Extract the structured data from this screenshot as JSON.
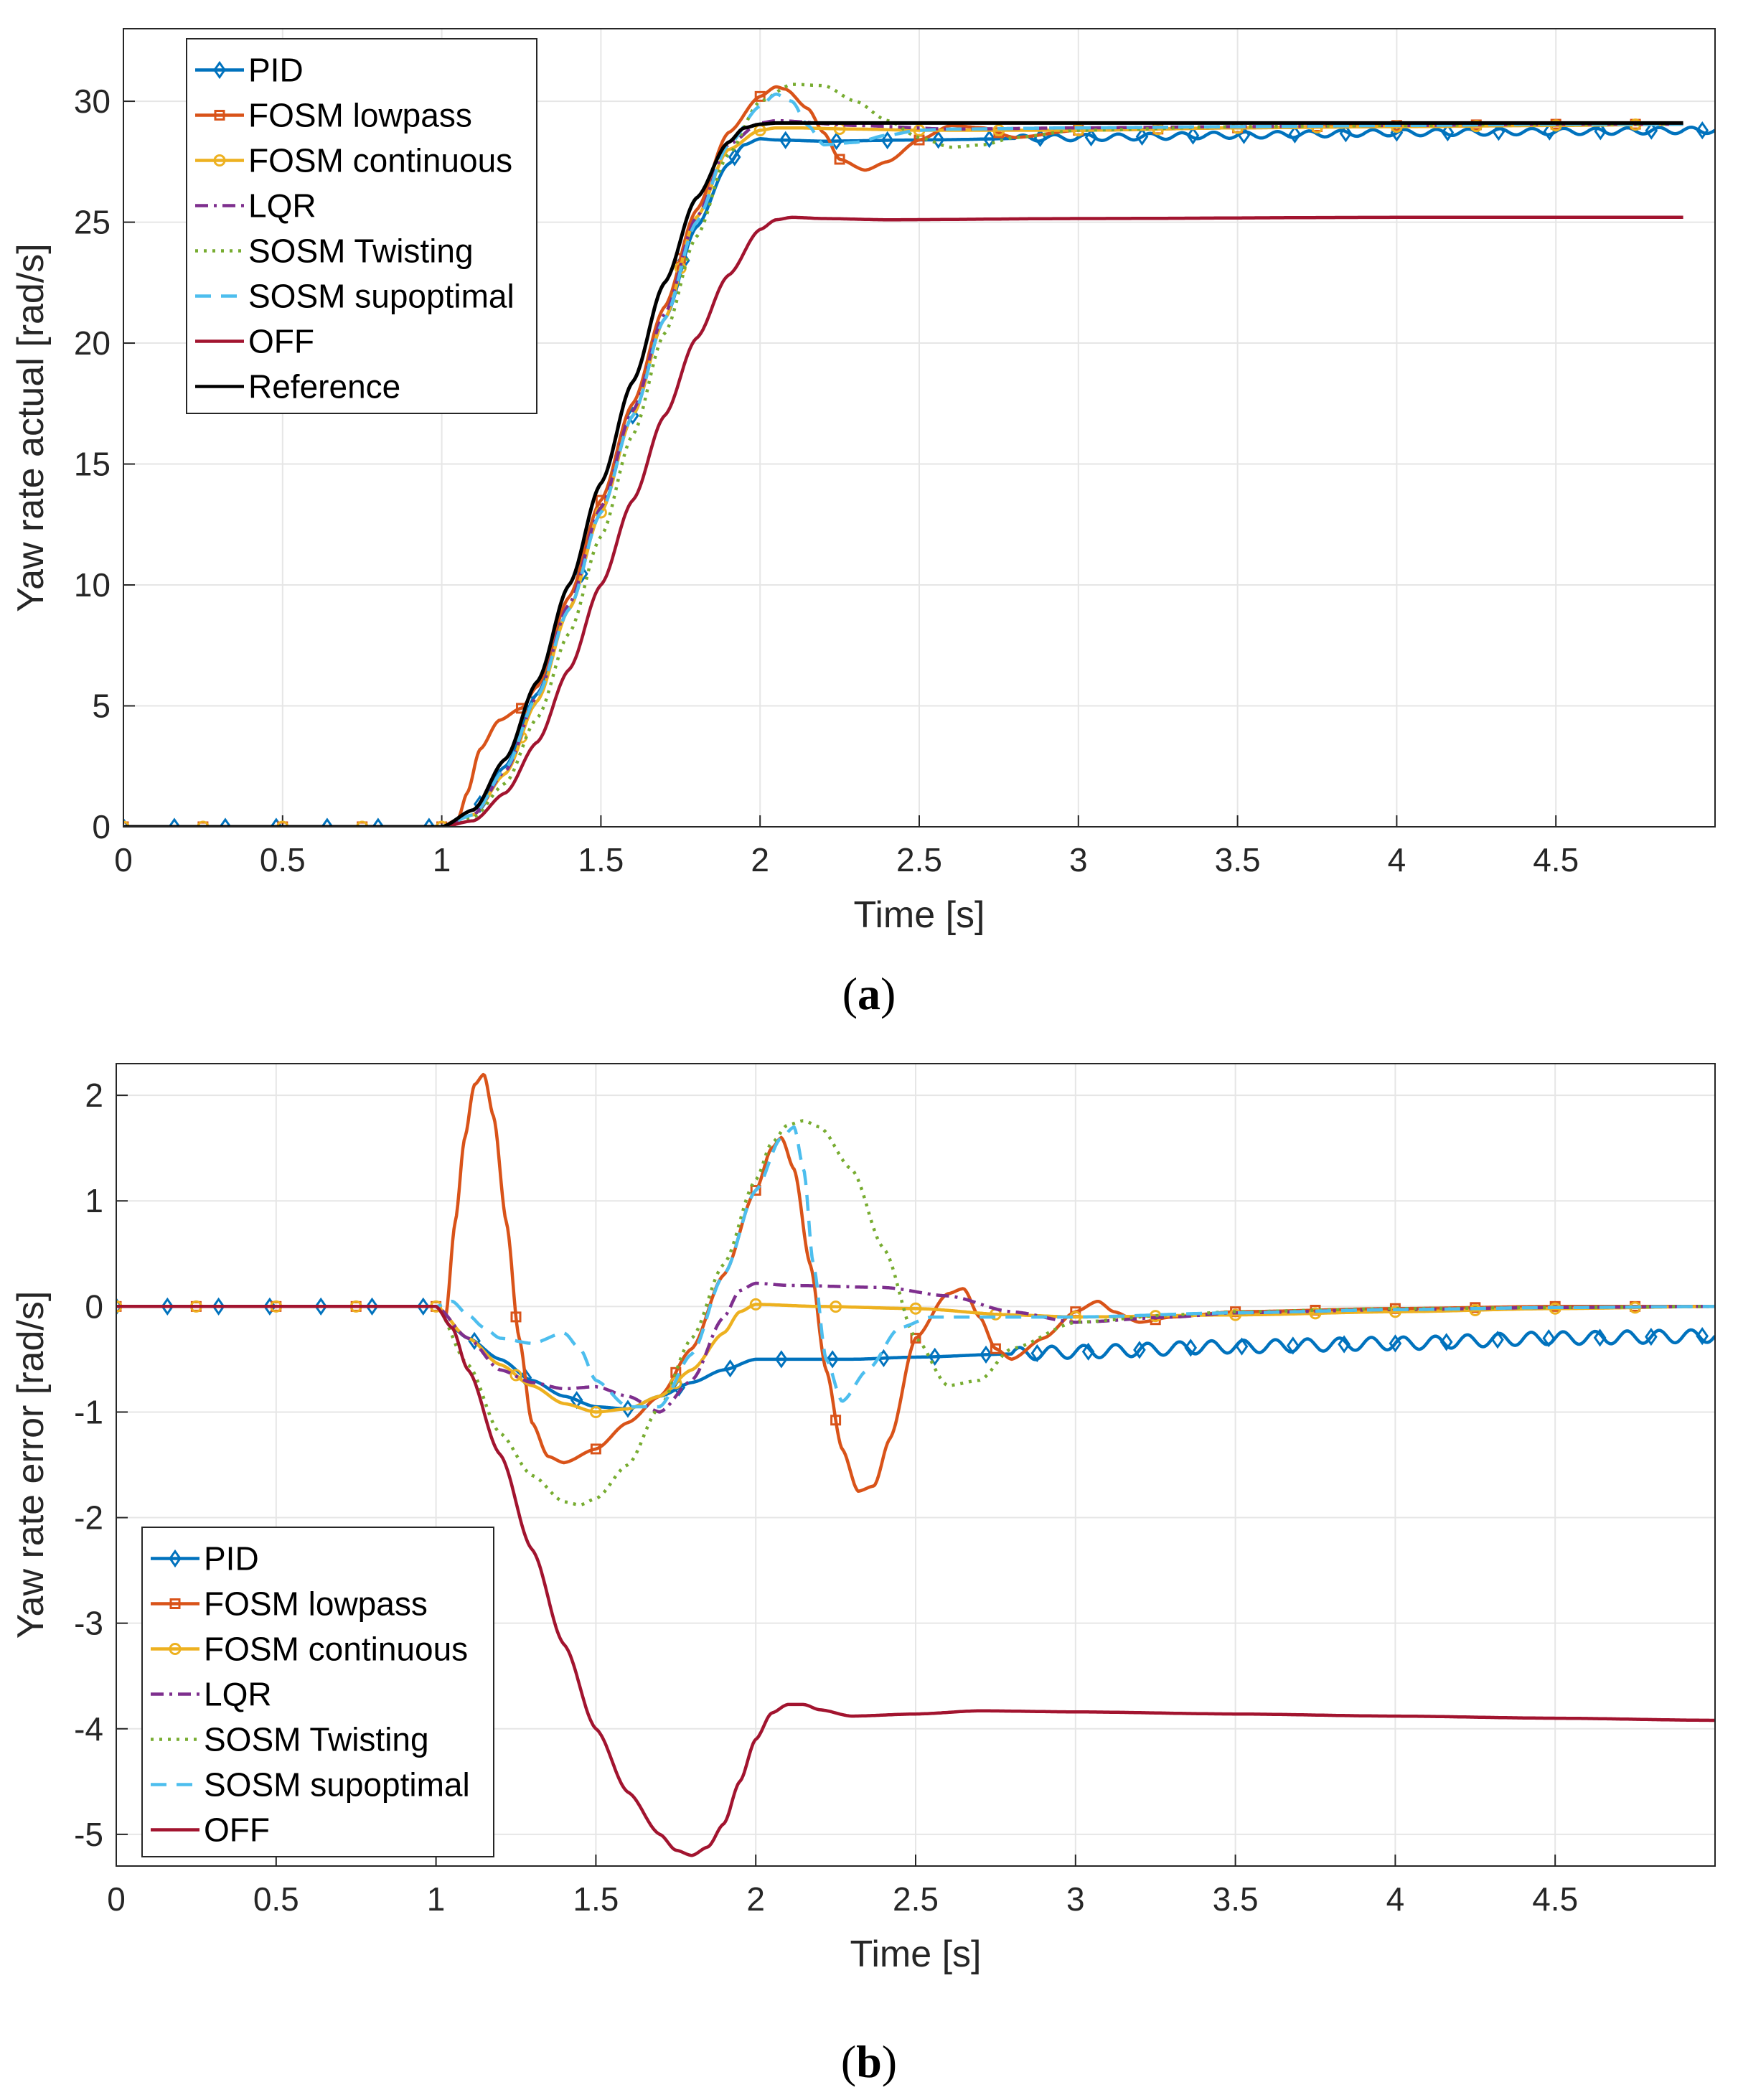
{
  "colors": {
    "pid": "#0072BD",
    "fosm_lowpass": "#D95319",
    "fosm_continuous": "#EDB120",
    "lqr": "#7E2F8E",
    "sosm_twisting": "#77AC30",
    "sosm_supoptimal": "#4DBEEE",
    "off": "#A2142F",
    "reference": "#000000",
    "grid": "#e6e6e6",
    "axis": "#262626"
  },
  "captions": {
    "a": "a",
    "b": "b"
  },
  "chart_data": [
    {
      "type": "line",
      "panel": "a",
      "title": "",
      "xlabel": "Time [s]",
      "ylabel": "Yaw rate actual [rad/s]",
      "xlim": [
        0,
        5
      ],
      "ylim": [
        0,
        33
      ],
      "xticks": [
        0,
        0.5,
        1,
        1.5,
        2,
        2.5,
        3,
        3.5,
        4,
        4.5
      ],
      "xtick_labels": [
        "0",
        "0.5",
        "1",
        "1.5",
        "2",
        "2.5",
        "3",
        "3.5",
        "4",
        "4.5"
      ],
      "yticks": [
        0,
        5,
        10,
        15,
        20,
        25,
        30
      ],
      "ytick_labels": [
        "0",
        "5",
        "10",
        "15",
        "20",
        "25",
        "30"
      ],
      "grid": true,
      "legend_position": "top-left",
      "series": [
        {
          "name": "PID",
          "key": "pid",
          "style": "solid",
          "marker": "diamond",
          "marker_every": 0.16,
          "x": [
            0,
            1,
            1.1,
            1.2,
            1.3,
            1.4,
            1.5,
            1.6,
            1.7,
            1.8,
            1.9,
            1.95,
            2.0,
            2.05,
            2.2,
            2.5,
            3.0,
            3.5,
            4.0,
            4.5,
            5.0
          ],
          "y": [
            0,
            0,
            0.7,
            2.5,
            5.5,
            9,
            13,
            17,
            21,
            24.8,
            27.4,
            28.2,
            28.45,
            28.4,
            28.35,
            28.4,
            28.5,
            28.6,
            28.7,
            28.75,
            28.8
          ],
          "ripple": {
            "from": 2.8,
            "amp": 0.13,
            "period": 0.1
          }
        },
        {
          "name": "FOSM lowpass",
          "key": "fosm_lowpass",
          "style": "solid",
          "marker": "square",
          "marker_every": 0.25,
          "x": [
            0,
            1,
            1.05,
            1.08,
            1.12,
            1.18,
            1.25,
            1.3,
            1.4,
            1.5,
            1.6,
            1.7,
            1.8,
            1.9,
            2.0,
            2.05,
            2.08,
            2.15,
            2.2,
            2.25,
            2.33,
            2.4,
            2.5,
            2.6,
            2.7,
            2.8,
            3.0,
            3.5,
            4.0,
            4.5,
            4.9
          ],
          "y": [
            0,
            0,
            0.3,
            1.4,
            3.2,
            4.4,
            4.9,
            5.8,
            9.5,
            13.5,
            17.5,
            21.5,
            25.5,
            28.7,
            30.2,
            30.6,
            30.5,
            29.7,
            28.7,
            27.6,
            27.15,
            27.5,
            28.4,
            29.0,
            28.9,
            28.5,
            28.8,
            28.9,
            29.0,
            29.05,
            29.05
          ]
        },
        {
          "name": "FOSM continuous",
          "key": "fosm_continuous",
          "style": "solid",
          "marker": "circle",
          "marker_every": 0.25,
          "x": [
            0,
            1,
            1.1,
            1.2,
            1.3,
            1.4,
            1.5,
            1.6,
            1.7,
            1.8,
            1.9,
            2.0,
            2.05,
            2.1,
            2.3,
            2.5,
            3.0,
            3.5,
            4.0,
            4.5,
            4.9
          ],
          "y": [
            0,
            0,
            0.5,
            2.2,
            5.2,
            9,
            13,
            17,
            21,
            25.2,
            28.0,
            28.8,
            28.9,
            28.9,
            28.85,
            28.8,
            28.8,
            28.9,
            28.95,
            29.0,
            29.05
          ]
        },
        {
          "name": "LQR",
          "key": "lqr",
          "style": "dashdot",
          "marker": "none",
          "x": [
            0,
            1,
            1.1,
            1.2,
            1.3,
            1.4,
            1.5,
            1.6,
            1.7,
            1.8,
            1.9,
            2.0,
            2.05,
            2.3,
            2.6,
            3.0,
            3.5,
            4.0,
            4.5,
            4.9
          ],
          "y": [
            0,
            0,
            0.5,
            2.3,
            5.4,
            9.2,
            13.2,
            17.2,
            21.2,
            25.2,
            28.2,
            29.1,
            29.2,
            29.0,
            28.85,
            28.9,
            28.95,
            29.0,
            29.05,
            29.05
          ]
        },
        {
          "name": "SOSM Twisting",
          "key": "sosm_twisting",
          "style": "dotted",
          "marker": "none",
          "x": [
            0,
            1,
            1.1,
            1.2,
            1.3,
            1.4,
            1.5,
            1.6,
            1.7,
            1.8,
            1.9,
            2.0,
            2.1,
            2.2,
            2.3,
            2.4,
            2.5,
            2.6,
            2.7,
            2.8,
            3.0,
            3.5,
            4.0,
            4.5,
            4.9
          ],
          "y": [
            0,
            0,
            0.4,
            1.8,
            4.5,
            8,
            12,
            16.2,
            20.4,
            24.4,
            27.8,
            30.0,
            30.7,
            30.65,
            30.0,
            29.2,
            28.5,
            28.1,
            28.2,
            28.5,
            28.8,
            28.95,
            29.0,
            29.05,
            29.05
          ]
        },
        {
          "name": "SOSM supoptimal",
          "key": "sosm_supoptimal",
          "style": "dashed",
          "marker": "none",
          "x": [
            0,
            1,
            1.1,
            1.2,
            1.3,
            1.4,
            1.5,
            1.6,
            1.7,
            1.8,
            1.9,
            2.0,
            2.05,
            2.1,
            2.15,
            2.2,
            2.3,
            2.4,
            2.5,
            2.6,
            3.0,
            3.5,
            4.0,
            4.5,
            4.9
          ],
          "y": [
            0,
            0,
            0.5,
            2.4,
            5.4,
            9,
            13,
            17,
            21,
            25,
            28.2,
            29.8,
            30.3,
            30.0,
            29.0,
            28.2,
            28.3,
            28.6,
            28.8,
            28.85,
            28.9,
            28.95,
            29.0,
            29.05,
            29.05
          ]
        },
        {
          "name": "OFF",
          "key": "off",
          "style": "solid",
          "marker": "none",
          "x": [
            0,
            1,
            1.1,
            1.2,
            1.3,
            1.4,
            1.5,
            1.6,
            1.7,
            1.8,
            1.9,
            2.0,
            2.05,
            2.1,
            2.2,
            2.4,
            3.0,
            4.0,
            4.9
          ],
          "y": [
            0,
            0,
            0.25,
            1.4,
            3.5,
            6.5,
            10,
            13.5,
            17,
            20.2,
            22.8,
            24.7,
            25.1,
            25.2,
            25.15,
            25.1,
            25.15,
            25.2,
            25.2
          ]
        },
        {
          "name": "Reference",
          "key": "reference",
          "style": "solid",
          "marker": "none",
          "x": [
            0,
            1,
            1.1,
            1.2,
            1.3,
            1.4,
            1.5,
            1.6,
            1.7,
            1.8,
            1.9,
            1.95,
            2.0,
            2.05,
            2.5,
            3.0,
            4.0,
            4.9
          ],
          "y": [
            0,
            0,
            0.7,
            2.8,
            6,
            10,
            14.2,
            18.4,
            22.5,
            26.0,
            28.3,
            28.9,
            29.05,
            29.1,
            29.1,
            29.1,
            29.1,
            29.1
          ]
        }
      ]
    },
    {
      "type": "line",
      "panel": "b",
      "title": "",
      "xlabel": "Time [s]",
      "ylabel": "Yaw rate error [rad/s]",
      "xlim": [
        0,
        5
      ],
      "ylim": [
        -5.3,
        2.3
      ],
      "xticks": [
        0,
        0.5,
        1,
        1.5,
        2,
        2.5,
        3,
        3.5,
        4,
        4.5
      ],
      "xtick_labels": [
        "0",
        "0.5",
        "1",
        "1.5",
        "2",
        "2.5",
        "3",
        "3.5",
        "4",
        "4.5"
      ],
      "yticks": [
        2,
        1,
        0,
        -1,
        -2,
        -3,
        -4,
        -5
      ],
      "ytick_labels": [
        "2",
        "1",
        "0",
        "-1",
        "-2",
        "-3",
        "-4",
        "-5"
      ],
      "grid": true,
      "legend_position": "bottom-left",
      "series": [
        {
          "name": "PID",
          "key": "pid",
          "style": "solid",
          "marker": "diamond",
          "marker_every": 0.16,
          "x": [
            0,
            1,
            1.05,
            1.1,
            1.2,
            1.3,
            1.4,
            1.5,
            1.6,
            1.7,
            1.8,
            1.9,
            2.0,
            2.1,
            2.3,
            2.5,
            2.8,
            3.0,
            3.5,
            4.0,
            4.5,
            5.0
          ],
          "y": [
            0,
            0,
            -0.2,
            -0.3,
            -0.5,
            -0.7,
            -0.85,
            -0.95,
            -0.97,
            -0.85,
            -0.72,
            -0.6,
            -0.5,
            -0.5,
            -0.5,
            -0.48,
            -0.45,
            -0.43,
            -0.38,
            -0.35,
            -0.3,
            -0.28
          ],
          "ripple": {
            "from": 2.8,
            "amp": 0.06,
            "period": 0.1
          }
        },
        {
          "name": "FOSM lowpass",
          "key": "fosm_lowpass",
          "style": "solid",
          "marker": "square",
          "marker_every": 0.25,
          "x": [
            0,
            1,
            1.03,
            1.06,
            1.09,
            1.12,
            1.15,
            1.18,
            1.22,
            1.26,
            1.3,
            1.35,
            1.4,
            1.5,
            1.6,
            1.7,
            1.8,
            1.9,
            2.0,
            2.05,
            2.08,
            2.12,
            2.17,
            2.22,
            2.27,
            2.32,
            2.37,
            2.42,
            2.5,
            2.6,
            2.65,
            2.7,
            2.75,
            2.8,
            2.9,
            3.0,
            3.07,
            3.12,
            3.2,
            3.3,
            3.5,
            4.0,
            4.5,
            5.0
          ],
          "y": [
            0,
            0,
            -0.1,
            0.8,
            1.6,
            2.1,
            2.2,
            1.8,
            0.8,
            -0.3,
            -1.1,
            -1.42,
            -1.48,
            -1.35,
            -1.1,
            -0.85,
            -0.4,
            0.3,
            1.1,
            1.5,
            1.6,
            1.3,
            0.4,
            -0.6,
            -1.35,
            -1.75,
            -1.7,
            -1.25,
            -0.3,
            0.12,
            0.17,
            -0.1,
            -0.4,
            -0.5,
            -0.3,
            -0.05,
            0.05,
            -0.05,
            -0.15,
            -0.1,
            -0.05,
            -0.02,
            0,
            0
          ]
        },
        {
          "name": "FOSM continuous",
          "key": "fosm_continuous",
          "style": "solid",
          "marker": "circle",
          "marker_every": 0.25,
          "x": [
            0,
            1,
            1.1,
            1.2,
            1.3,
            1.4,
            1.5,
            1.6,
            1.7,
            1.8,
            1.9,
            1.95,
            2.0,
            2.2,
            2.5,
            2.8,
            3.0,
            3.5,
            4.0,
            4.5,
            5.0
          ],
          "y": [
            0,
            0,
            -0.3,
            -0.55,
            -0.75,
            -0.92,
            -1.0,
            -0.97,
            -0.85,
            -0.6,
            -0.25,
            -0.05,
            0.02,
            0.0,
            -0.02,
            -0.08,
            -0.1,
            -0.08,
            -0.05,
            -0.02,
            0
          ]
        },
        {
          "name": "LQR",
          "key": "lqr",
          "style": "dashdot",
          "marker": "none",
          "x": [
            0,
            1,
            1.1,
            1.2,
            1.3,
            1.4,
            1.5,
            1.6,
            1.7,
            1.8,
            1.9,
            1.95,
            2.0,
            2.1,
            2.4,
            2.6,
            2.8,
            3.0,
            3.3,
            3.5,
            4.0,
            4.5,
            5.0
          ],
          "y": [
            0,
            0,
            -0.3,
            -0.6,
            -0.72,
            -0.78,
            -0.76,
            -0.85,
            -1.0,
            -0.7,
            -0.1,
            0.15,
            0.22,
            0.2,
            0.18,
            0.1,
            -0.05,
            -0.15,
            -0.1,
            -0.06,
            -0.03,
            -0.01,
            0
          ]
        },
        {
          "name": "SOSM Twisting",
          "key": "sosm_twisting",
          "style": "dotted",
          "marker": "none",
          "x": [
            0,
            1,
            1.1,
            1.2,
            1.3,
            1.4,
            1.45,
            1.5,
            1.6,
            1.7,
            1.8,
            1.9,
            2.0,
            2.05,
            2.1,
            2.15,
            2.2,
            2.3,
            2.4,
            2.5,
            2.6,
            2.7,
            2.8,
            3.0,
            3.3,
            3.5,
            4.0,
            4.5,
            5.0
          ],
          "y": [
            0,
            0,
            -0.55,
            -1.2,
            -1.6,
            -1.85,
            -1.88,
            -1.82,
            -1.5,
            -0.95,
            -0.3,
            0.4,
            1.2,
            1.55,
            1.72,
            1.76,
            1.7,
            1.3,
            0.55,
            -0.3,
            -0.75,
            -0.7,
            -0.4,
            -0.15,
            -0.08,
            -0.05,
            -0.02,
            -0.01,
            0
          ]
        },
        {
          "name": "SOSM supoptimal",
          "key": "sosm_supoptimal",
          "style": "dashed",
          "marker": "none",
          "x": [
            0,
            1,
            1.05,
            1.1,
            1.15,
            1.2,
            1.3,
            1.4,
            1.45,
            1.5,
            1.6,
            1.7,
            1.8,
            1.9,
            2.0,
            2.08,
            2.12,
            2.15,
            2.18,
            2.22,
            2.27,
            2.35,
            2.45,
            2.55,
            2.7,
            3.0,
            3.5,
            4.0,
            4.5,
            5.0
          ],
          "y": [
            0,
            0,
            0.05,
            -0.08,
            -0.2,
            -0.3,
            -0.35,
            -0.25,
            -0.4,
            -0.7,
            -0.95,
            -0.95,
            -0.45,
            0.3,
            1.1,
            1.6,
            1.7,
            1.3,
            0.4,
            -0.5,
            -0.9,
            -0.6,
            -0.2,
            -0.1,
            -0.1,
            -0.1,
            -0.06,
            -0.03,
            -0.01,
            0
          ]
        },
        {
          "name": "OFF",
          "key": "off",
          "style": "solid",
          "marker": "none",
          "x": [
            0,
            1,
            1.05,
            1.1,
            1.2,
            1.3,
            1.4,
            1.5,
            1.6,
            1.7,
            1.75,
            1.8,
            1.85,
            1.9,
            1.95,
            2.0,
            2.05,
            2.1,
            2.15,
            2.2,
            2.3,
            2.5,
            2.7,
            3.0,
            3.5,
            4.0,
            4.5,
            5.0
          ],
          "y": [
            0,
            0,
            -0.2,
            -0.6,
            -1.4,
            -2.3,
            -3.2,
            -4.0,
            -4.6,
            -5.0,
            -5.15,
            -5.2,
            -5.12,
            -4.9,
            -4.5,
            -4.1,
            -3.85,
            -3.77,
            -3.77,
            -3.82,
            -3.88,
            -3.86,
            -3.83,
            -3.84,
            -3.86,
            -3.88,
            -3.9,
            -3.92
          ]
        }
      ]
    }
  ]
}
